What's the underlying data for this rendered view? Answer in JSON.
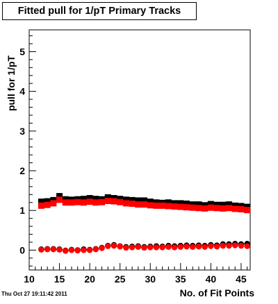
{
  "chart_data": {
    "type": "scatter",
    "title": "Fitted pull for 1/pT Primary Tracks",
    "xlabel": "No. of Fit Points",
    "ylabel": "pull for 1/pT",
    "xlim": [
      10,
      46.5
    ],
    "ylim": [
      -0.5,
      5.55
    ],
    "x_ticks": [
      10,
      15,
      20,
      25,
      30,
      35,
      40,
      45
    ],
    "y_ticks": [
      0,
      1,
      2,
      3,
      4,
      5
    ],
    "grid": false,
    "legend": "none",
    "marker_color_series": [
      "#000000",
      "#ff0000",
      "#000000",
      "#ff0000"
    ],
    "series": [
      {
        "marker": "square",
        "x": [
          12,
          13,
          14,
          15,
          16,
          17,
          18,
          19,
          20,
          21,
          22,
          23,
          24,
          25,
          26,
          27,
          28,
          29,
          30,
          31,
          32,
          33,
          34,
          35,
          36,
          37,
          38,
          39,
          40,
          41,
          42,
          43,
          44,
          45,
          46
        ],
        "values": [
          1.22,
          1.23,
          1.26,
          1.36,
          1.28,
          1.27,
          1.28,
          1.29,
          1.31,
          1.29,
          1.28,
          1.33,
          1.31,
          1.29,
          1.27,
          1.26,
          1.25,
          1.25,
          1.22,
          1.2,
          1.19,
          1.2,
          1.18,
          1.18,
          1.17,
          1.15,
          1.15,
          1.13,
          1.16,
          1.14,
          1.14,
          1.15,
          1.12,
          1.11,
          1.09
        ]
      },
      {
        "marker": "square",
        "x": [
          12,
          13,
          14,
          15,
          16,
          17,
          18,
          19,
          20,
          21,
          22,
          23,
          24,
          25,
          26,
          27,
          28,
          29,
          30,
          31,
          32,
          33,
          34,
          35,
          36,
          37,
          38,
          39,
          40,
          41,
          42,
          43,
          44,
          45,
          46
        ],
        "values": [
          1.12,
          1.14,
          1.18,
          1.27,
          1.2,
          1.2,
          1.21,
          1.2,
          1.22,
          1.2,
          1.21,
          1.24,
          1.23,
          1.21,
          1.18,
          1.17,
          1.15,
          1.15,
          1.13,
          1.12,
          1.12,
          1.11,
          1.1,
          1.09,
          1.08,
          1.07,
          1.06,
          1.05,
          1.07,
          1.06,
          1.05,
          1.06,
          1.04,
          1.03,
          1.01
        ]
      },
      {
        "marker": "circle",
        "x": [
          12,
          13,
          14,
          15,
          16,
          17,
          18,
          19,
          20,
          21,
          22,
          23,
          24,
          25,
          26,
          27,
          28,
          29,
          30,
          31,
          32,
          33,
          34,
          35,
          36,
          37,
          38,
          39,
          40,
          41,
          42,
          43,
          44,
          45,
          46
        ],
        "values": [
          0.02,
          0.03,
          0.03,
          0.02,
          -0.01,
          0.01,
          0.0,
          0.02,
          0.01,
          0.03,
          0.06,
          0.11,
          0.13,
          0.1,
          0.08,
          0.09,
          0.1,
          0.08,
          0.09,
          0.1,
          0.09,
          0.11,
          0.1,
          0.11,
          0.12,
          0.11,
          0.12,
          0.11,
          0.13,
          0.12,
          0.15,
          0.15,
          0.16,
          0.15,
          0.16
        ]
      },
      {
        "marker": "circle",
        "x": [
          12,
          13,
          14,
          15,
          16,
          17,
          18,
          19,
          20,
          21,
          22,
          23,
          24,
          25,
          26,
          27,
          28,
          29,
          30,
          31,
          32,
          33,
          34,
          35,
          36,
          37,
          38,
          39,
          40,
          41,
          42,
          43,
          44,
          45,
          46
        ],
        "values": [
          0.01,
          0.02,
          0.02,
          0.01,
          -0.02,
          0.0,
          -0.01,
          0.0,
          0.0,
          0.02,
          0.05,
          0.1,
          0.11,
          0.09,
          0.06,
          0.07,
          0.08,
          0.06,
          0.07,
          0.07,
          0.07,
          0.08,
          0.07,
          0.08,
          0.09,
          0.08,
          0.09,
          0.08,
          0.1,
          0.09,
          0.11,
          0.11,
          0.12,
          0.11,
          0.1
        ]
      }
    ]
  },
  "footer": {
    "timestamp": "Thu Oct 27 19:11:42 2011"
  }
}
